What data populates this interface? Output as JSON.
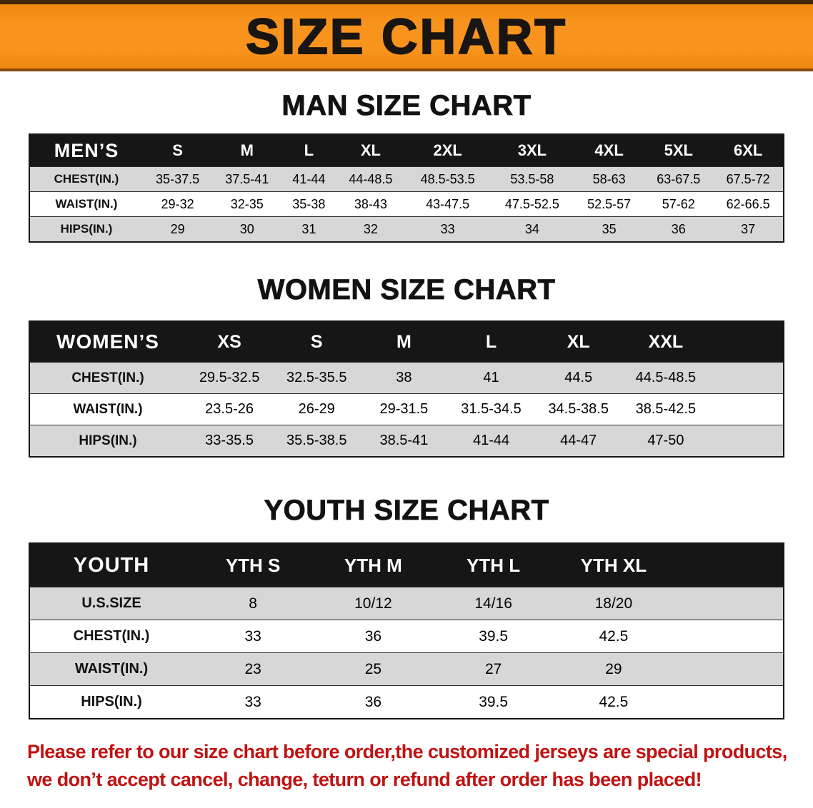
{
  "banner": {
    "title": "SIZE CHART",
    "background": "#f8941d",
    "text_color": "#181512"
  },
  "sections": [
    {
      "heading": "MAN SIZE CHART",
      "table": {
        "corner_label": "MEN’S",
        "columns": [
          "S",
          "M",
          "L",
          "XL",
          "2XL",
          "3XL",
          "4XL",
          "5XL",
          "6XL"
        ],
        "rows": [
          {
            "label": "CHEST(IN.)",
            "values": [
              "35-37.5",
              "37.5-41",
              "41-44",
              "44-48.5",
              "48.5-53.5",
              "53.5-58",
              "58-63",
              "63-67.5",
              "67.5-72"
            ]
          },
          {
            "label": "WAIST(IN.)",
            "values": [
              "29-32",
              "32-35",
              "35-38",
              "38-43",
              "43-47.5",
              "47.5-52.5",
              "52.5-57",
              "57-62",
              "62-66.5"
            ]
          },
          {
            "label": "HIPS(IN.)",
            "values": [
              "29",
              "30",
              "31",
              "32",
              "33",
              "34",
              "35",
              "36",
              "37"
            ]
          }
        ]
      }
    },
    {
      "heading": "WOMEN SIZE CHART",
      "table": {
        "corner_label": "WOMEN’S",
        "columns": [
          "XS",
          "S",
          "M",
          "L",
          "XL",
          "XXL"
        ],
        "rows": [
          {
            "label": "CHEST(IN.)",
            "values": [
              "29.5-32.5",
              "32.5-35.5",
              "38",
              "41",
              "44.5",
              "44.5-48.5"
            ]
          },
          {
            "label": "WAIST(IN.)",
            "values": [
              "23.5-26",
              "26-29",
              "29-31.5",
              "31.5-34.5",
              "34.5-38.5",
              "38.5-42.5"
            ]
          },
          {
            "label": "HIPS(IN.)",
            "values": [
              "33-35.5",
              "35.5-38.5",
              "38.5-41",
              "41-44",
              "44-47",
              "47-50"
            ]
          }
        ]
      }
    },
    {
      "heading": "YOUTH SIZE CHART",
      "table": {
        "corner_label": "YOUTH",
        "columns": [
          "YTH S",
          "YTH M",
          "YTH L",
          "YTH XL"
        ],
        "rows": [
          {
            "label": "U.S.SIZE",
            "values": [
              "8",
              "10/12",
              "14/16",
              "18/20"
            ]
          },
          {
            "label": "CHEST(IN.)",
            "values": [
              "33",
              "36",
              "39.5",
              "42.5"
            ]
          },
          {
            "label": "WAIST(IN.)",
            "values": [
              "23",
              "25",
              "27",
              "29"
            ]
          },
          {
            "label": "HIPS(IN.)",
            "values": [
              "33",
              "36",
              "39.5",
              "42.5"
            ]
          }
        ]
      }
    }
  ],
  "disclaimer": {
    "line1": "Please refer to our size chart before order,the customized jerseys are special products,",
    "line2": "we don’t accept cancel, change, teturn or refund after order has been placed!",
    "color": "#c11212"
  }
}
